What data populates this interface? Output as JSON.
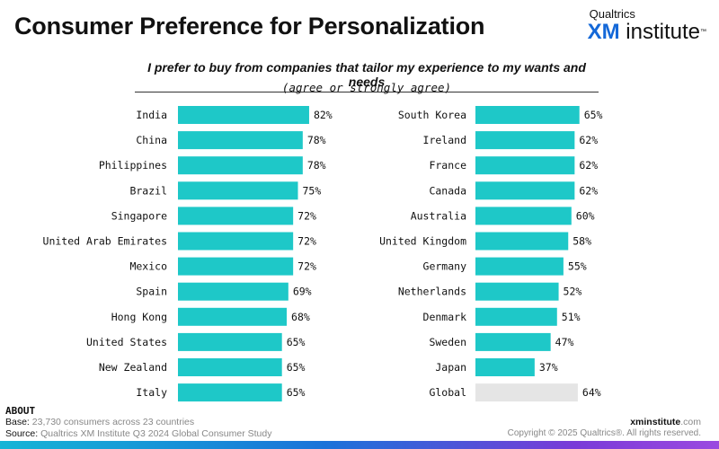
{
  "header": {
    "title": "Consumer Preference for Personalization",
    "logo_top": "Qualtrics",
    "logo_xm": "XM",
    "logo_rest": " institute",
    "logo_tm": "™"
  },
  "chart_data": {
    "type": "bar",
    "orientation": "horizontal",
    "title": "I prefer to buy from companies that tailor my experience to my wants and needs",
    "subtitle": "(agree or strongly agree)",
    "xlim": [
      0,
      100
    ],
    "unit": "%",
    "colors": {
      "bar": "#1ec8c8",
      "benchmark": "#e5e5e5"
    },
    "panels": [
      {
        "categories": [
          "India",
          "China",
          "Philippines",
          "Brazil",
          "Singapore",
          "United Arab Emirates",
          "Mexico",
          "Spain",
          "Hong Kong",
          "United States",
          "New Zealand",
          "Italy"
        ],
        "values": [
          82,
          78,
          78,
          75,
          72,
          72,
          72,
          69,
          68,
          65,
          65,
          65
        ]
      },
      {
        "categories": [
          "South Korea",
          "Ireland",
          "France",
          "Canada",
          "Australia",
          "United Kingdom",
          "Germany",
          "Netherlands",
          "Denmark",
          "Sweden",
          "Japan",
          "Global"
        ],
        "values": [
          65,
          62,
          62,
          62,
          60,
          58,
          55,
          52,
          51,
          47,
          37,
          64
        ],
        "highlight": [
          "",
          "",
          "",
          "",
          "",
          "",
          "",
          "",
          "",
          "",
          "",
          "benchmark"
        ]
      }
    ]
  },
  "footer": {
    "about": "ABOUT",
    "base_label": "Base: ",
    "base_value": "23,730 consumers across 23 countries",
    "source_label": "Source: ",
    "source_value": "Qualtrics XM Institute Q3 2024 Global Consumer Study",
    "site_domain": "xminstitute",
    "site_tld": ".com",
    "copyright": "Copyright © 2025 Qualtrics®. All rights reserved."
  }
}
